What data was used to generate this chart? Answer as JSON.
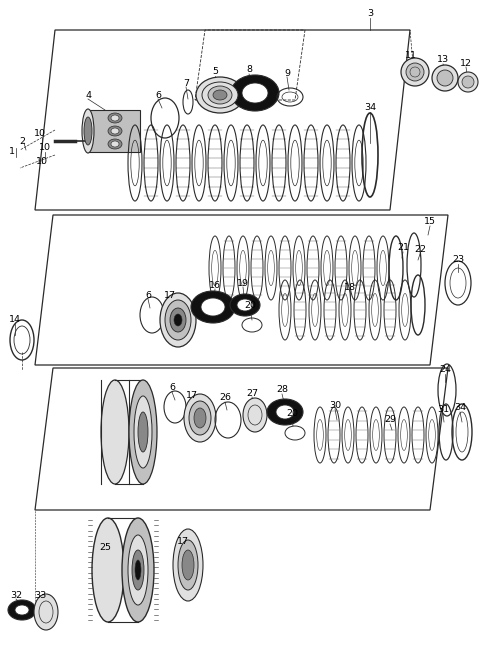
{
  "bg_color": "#ffffff",
  "lc": "#2a2a2a",
  "gray_fill": "#c0c0c0",
  "dark_fill": "#111111",
  "mid_fill": "#888888",
  "light_fill": "#e0e0e0",
  "figsize": [
    4.8,
    6.56
  ],
  "dpi": 100
}
